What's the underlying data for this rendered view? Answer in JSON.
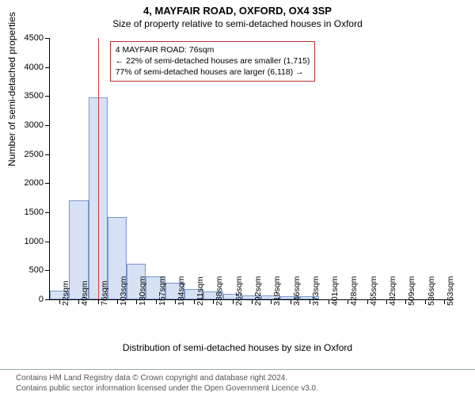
{
  "title": "4, MAYFAIR ROAD, OXFORD, OX4 3SP",
  "subtitle": "Size of property relative to semi-detached houses in Oxford",
  "y_axis_title": "Number of semi-detached properties",
  "x_axis_title": "Distribution of semi-detached houses by size in Oxford",
  "chart": {
    "type": "histogram",
    "y_max": 4500,
    "y_tick_step": 500,
    "bar_fill": "#d7e1f4",
    "bar_stroke": "#7a95c9",
    "background": "#ffffff",
    "marker_color": "#d33a3a",
    "annotation_border": "#b62f2f",
    "x_labels": [
      "22sqm",
      "49sqm",
      "76sqm",
      "103sqm",
      "130sqm",
      "157sqm",
      "184sqm",
      "211sqm",
      "238sqm",
      "265sqm",
      "292sqm",
      "319sqm",
      "346sqm",
      "373sqm",
      "401sqm",
      "428sqm",
      "455sqm",
      "482sqm",
      "509sqm",
      "536sqm",
      "563sqm"
    ],
    "values": [
      150,
      1700,
      3480,
      1420,
      620,
      400,
      280,
      180,
      130,
      100,
      70,
      70,
      60,
      60,
      0,
      0,
      0,
      0,
      0,
      0,
      0
    ],
    "marker_index": 2
  },
  "annotation": {
    "line1": "4 MAYFAIR ROAD: 76sqm",
    "line2": "← 22% of semi-detached houses are smaller (1,715)",
    "line3": "77% of semi-detached houses are larger (6,118) →"
  },
  "footer": {
    "line1": "Contains HM Land Registry data © Crown copyright and database right 2024.",
    "line2": "Contains public sector information licensed under the Open Government Licence v3.0."
  }
}
